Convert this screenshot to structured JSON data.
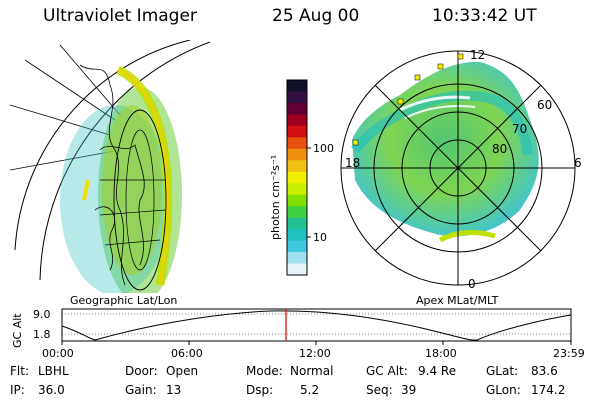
{
  "header": {
    "instrument": "Ultraviolet Imager",
    "date": "25 Aug 00",
    "time": "10:33:42 UT"
  },
  "left_panel": {
    "caption": "Geographic Lat/Lon"
  },
  "colorbar": {
    "units_label": "photon cm⁻²s⁻¹",
    "ticks": [
      "100",
      "10"
    ],
    "colors": [
      "#101028",
      "#301040",
      "#600030",
      "#a00020",
      "#d01010",
      "#e85010",
      "#f09010",
      "#f0c010",
      "#f0f000",
      "#c8f000",
      "#80e000",
      "#40d040",
      "#20c090",
      "#20c0c0",
      "#40c8e0",
      "#a0e0f0",
      "#e8f4f8"
    ]
  },
  "right_panel": {
    "caption": "Apex MLat/MLT",
    "mlt_labels": {
      "top": "12",
      "left": "18",
      "right": "6",
      "bottom": "0"
    },
    "lat_labels": [
      "60",
      "70",
      "80"
    ]
  },
  "altitude_plot": {
    "ylabel": "GC Alt",
    "yticks": [
      "9.0",
      "1.8"
    ],
    "xticks": [
      "00:00",
      "06:00",
      "12:00",
      "18:00",
      "23:59"
    ]
  },
  "info": {
    "flt_label": "Flt:",
    "flt_value": "LBHL",
    "ip_label": "IP:",
    "ip_value": "36.0",
    "door_label": "Door:",
    "door_value": "Open",
    "gain_label": "Gain:",
    "gain_value": "13",
    "mode_label": "Mode:",
    "mode_value": "Normal",
    "dsp_label": "Dsp:",
    "dsp_value": "5.2",
    "gcalt_label": "GC Alt:",
    "gcalt_value": "9.4 Re",
    "seq_label": "Seq:",
    "seq_value": "39",
    "glat_label": "GLat:",
    "glat_value": "83.6",
    "glon_label": "GLon:",
    "glon_value": "174.2"
  }
}
